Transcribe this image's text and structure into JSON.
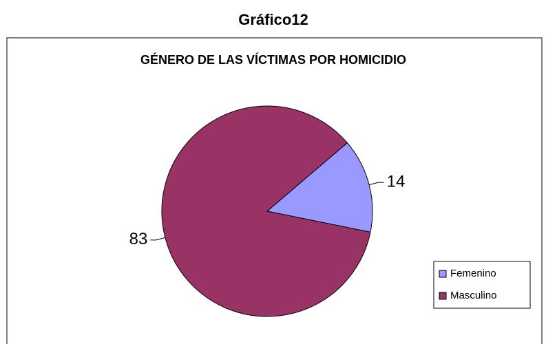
{
  "page_title": "Gráfico12",
  "chart_data": {
    "type": "pie",
    "title": "GÉNERO DE LAS VÍCTIMAS POR HOMICIDIO",
    "categories": [
      "Femenino",
      "Masculino"
    ],
    "values": [
      14,
      83
    ],
    "colors": [
      "#9999ff",
      "#993366"
    ],
    "legend": "right"
  }
}
